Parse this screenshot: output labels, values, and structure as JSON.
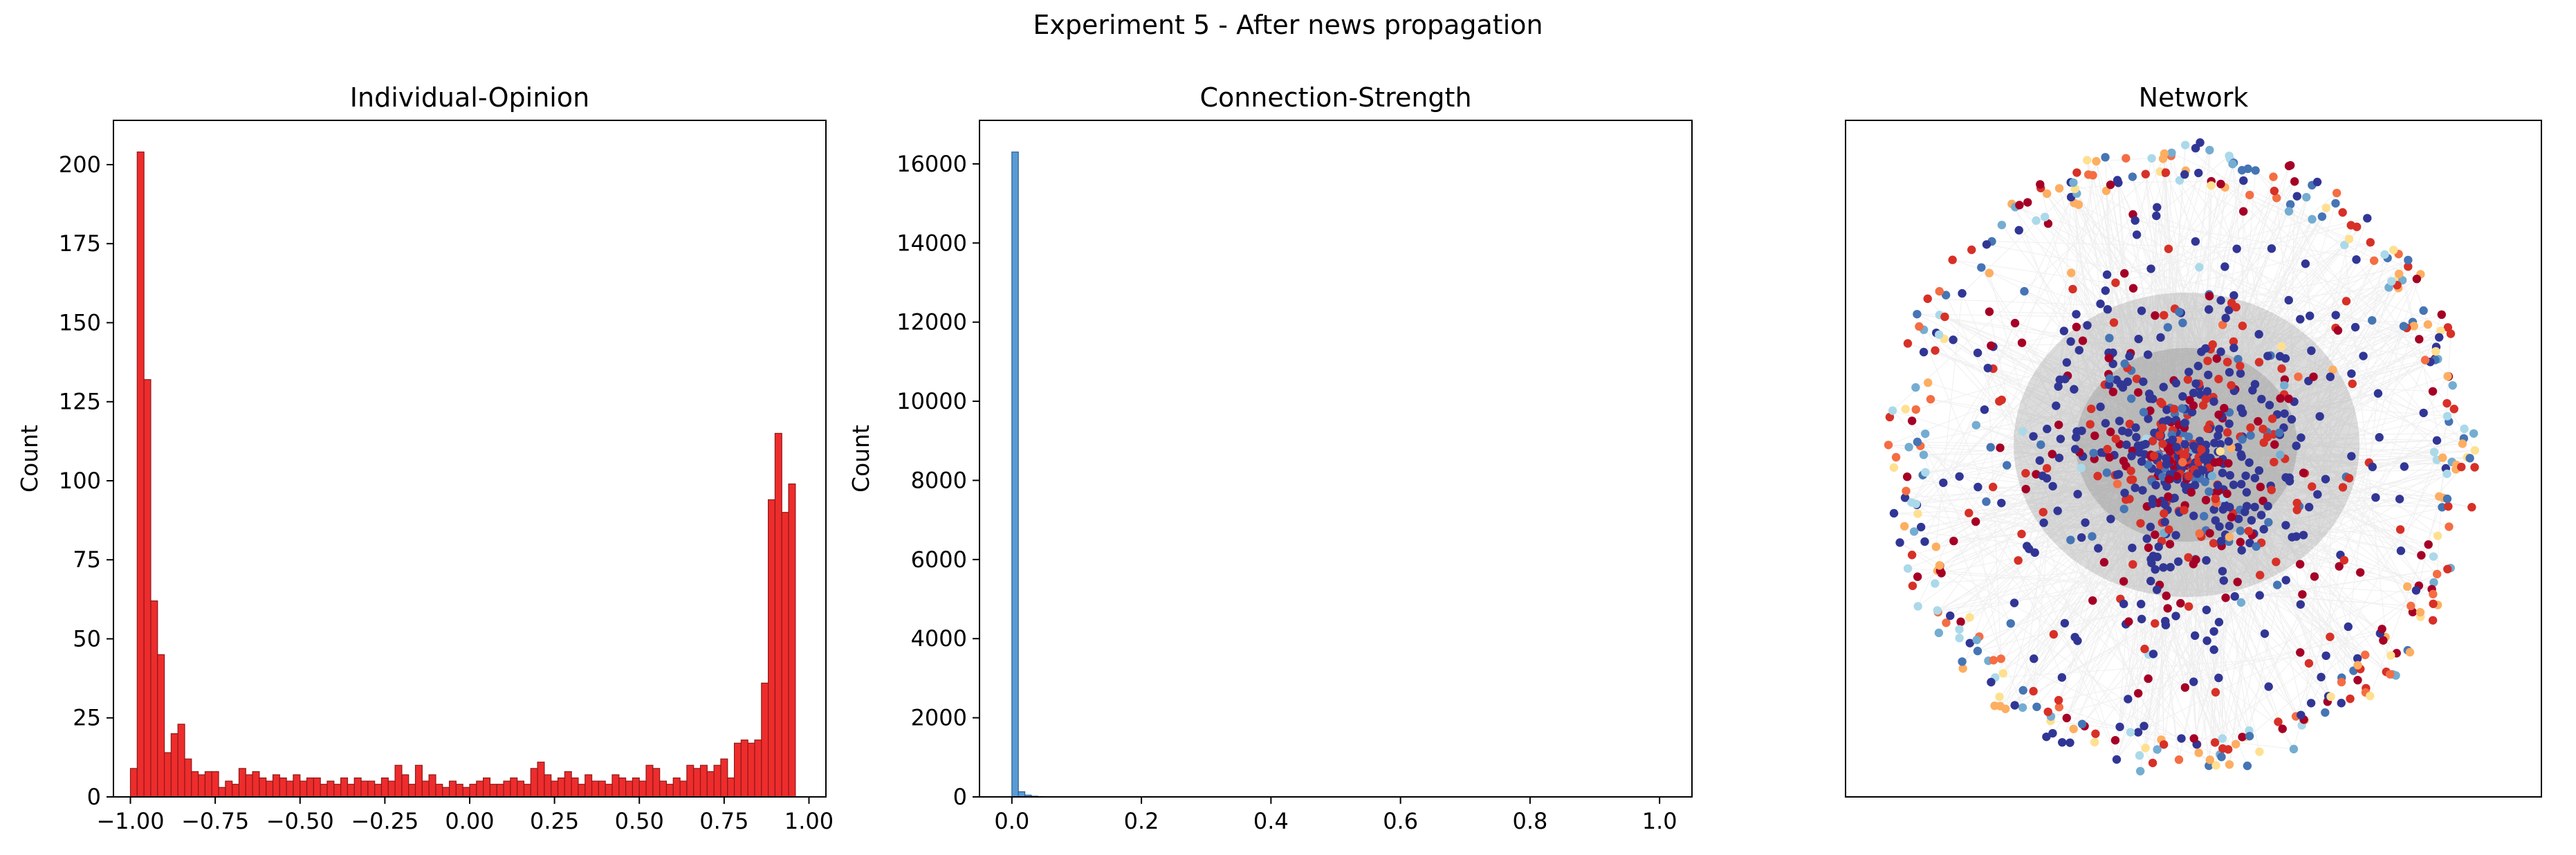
{
  "figure": {
    "suptitle": "Experiment 5 - After news propagation"
  },
  "chart_data": [
    {
      "type": "bar",
      "title": "Individual-Opinion",
      "xlabel": "",
      "ylabel": "Count",
      "xlim": [
        -1.05,
        1.05
      ],
      "ylim": [
        0,
        214
      ],
      "bin_start": -1.0,
      "bin_width": 0.02,
      "bar_color": "#ee2c2c",
      "edge_color": "#8b1a1a",
      "xticks": [
        -1.0,
        -0.75,
        -0.5,
        -0.25,
        0.0,
        0.25,
        0.5,
        0.75,
        1.0
      ],
      "xtick_labels": [
        "−1.00",
        "−0.75",
        "−0.50",
        "−0.25",
        "0.00",
        "0.25",
        "0.50",
        "0.75",
        "1.00"
      ],
      "yticks": [
        0,
        25,
        50,
        75,
        100,
        125,
        150,
        175,
        200
      ],
      "ytick_labels": [
        "0",
        "25",
        "50",
        "75",
        "100",
        "125",
        "150",
        "175",
        "200"
      ],
      "values": [
        9,
        204,
        132,
        62,
        45,
        14,
        20,
        23,
        12,
        8,
        7,
        8,
        8,
        3,
        5,
        4,
        9,
        7,
        8,
        6,
        5,
        7,
        6,
        5,
        7,
        5,
        6,
        6,
        4,
        5,
        4,
        6,
        4,
        6,
        5,
        5,
        4,
        6,
        5,
        10,
        7,
        4,
        10,
        5,
        7,
        4,
        3,
        5,
        4,
        3,
        4,
        5,
        6,
        4,
        4,
        5,
        6,
        5,
        4,
        9,
        11,
        7,
        5,
        6,
        8,
        6,
        4,
        7,
        5,
        5,
        4,
        7,
        6,
        5,
        6,
        5,
        10,
        9,
        5,
        4,
        6,
        5,
        10,
        9,
        10,
        8,
        10,
        12,
        6,
        17,
        18,
        17,
        18,
        36,
        94,
        115,
        90,
        99
      ]
    },
    {
      "type": "bar",
      "title": "Connection-Strength",
      "xlabel": "",
      "ylabel": "Count",
      "xlim": [
        -0.05,
        1.05
      ],
      "ylim": [
        0,
        17100
      ],
      "bin_start": 0.0,
      "bin_width": 0.01,
      "bar_color": "#5a9bd5",
      "edge_color": "#2c5f8a",
      "xticks": [
        0.0,
        0.2,
        0.4,
        0.6,
        0.8,
        1.0
      ],
      "xtick_labels": [
        "0.0",
        "0.2",
        "0.4",
        "0.6",
        "0.8",
        "1.0"
      ],
      "yticks": [
        0,
        2000,
        4000,
        6000,
        8000,
        10000,
        12000,
        14000,
        16000
      ],
      "ytick_labels": [
        "0",
        "2000",
        "4000",
        "6000",
        "8000",
        "10000",
        "12000",
        "14000",
        "16000"
      ],
      "values": [
        16300,
        130,
        45,
        18,
        10,
        6,
        4,
        3,
        2,
        2
      ]
    },
    {
      "type": "scatter",
      "title": "Network",
      "xlabel": "",
      "ylabel": "",
      "colormap": [
        "#313695",
        "#4575b4",
        "#74add1",
        "#abd9e9",
        "#fee090",
        "#fdae61",
        "#f46d43",
        "#d73027",
        "#a50026"
      ],
      "edge_color": "#c8c8c8",
      "node_count_estimate": 1100
    }
  ]
}
